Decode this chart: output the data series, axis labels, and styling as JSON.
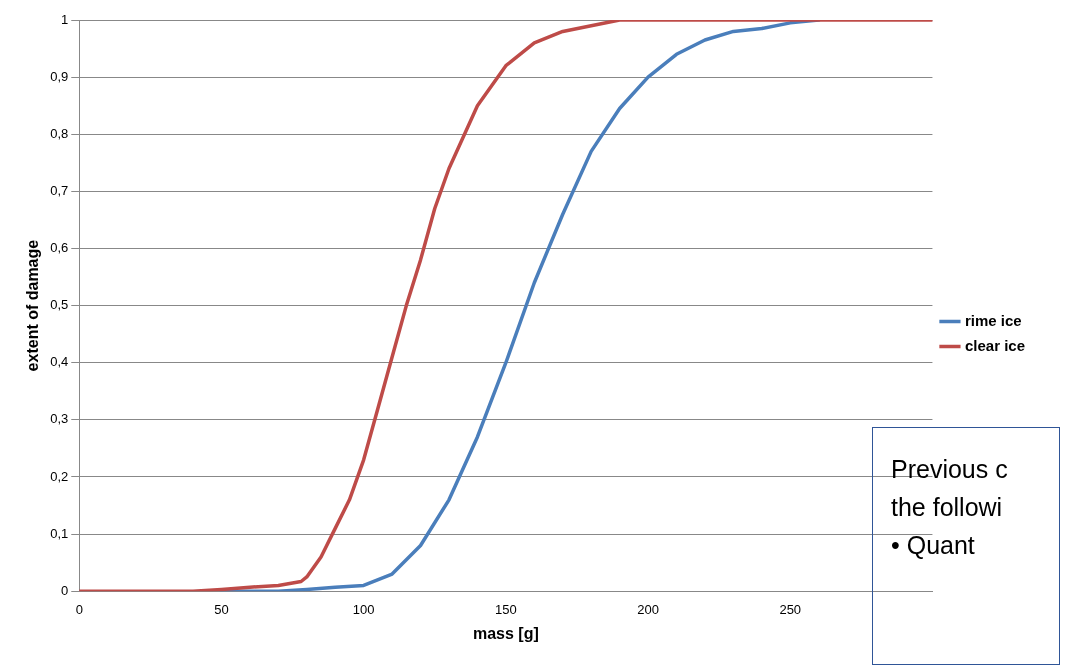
{
  "chart_data": {
    "type": "line",
    "xlabel": "mass [g]",
    "ylabel": "extent of damage",
    "xlim": [
      0,
      300
    ],
    "xticks": [
      0,
      50,
      100,
      150,
      200,
      250
    ],
    "ylim": [
      0,
      1
    ],
    "yticks": [
      {
        "value": 0,
        "label": "0"
      },
      {
        "value": 0.1,
        "label": "0,1"
      },
      {
        "value": 0.2,
        "label": "0,2"
      },
      {
        "value": 0.3,
        "label": "0,3"
      },
      {
        "value": 0.4,
        "label": "0,4"
      },
      {
        "value": 0.5,
        "label": "0,5"
      },
      {
        "value": 0.6,
        "label": "0,6"
      },
      {
        "value": 0.7,
        "label": "0,7"
      },
      {
        "value": 0.8,
        "label": "0,8"
      },
      {
        "value": 0.9,
        "label": "0,9"
      },
      {
        "value": 1,
        "label": "1"
      }
    ],
    "grid": "y",
    "legend": "right",
    "marker": "none",
    "line_style": "solid",
    "series": [
      {
        "name": "rime ice",
        "color": "#4a7ebb",
        "x": [
          50,
          60,
          70,
          80,
          90,
          100,
          110,
          120,
          130,
          140,
          150,
          160,
          170,
          180,
          190,
          200,
          210,
          220,
          230,
          240,
          250,
          260
        ],
        "values": [
          0,
          0,
          0,
          0.003,
          0.007,
          0.01,
          0.03,
          0.08,
          0.16,
          0.27,
          0.4,
          0.54,
          0.66,
          0.77,
          0.845,
          0.9,
          0.94,
          0.965,
          0.98,
          0.985,
          0.995,
          1
        ]
      },
      {
        "name": "clear ice",
        "color": "#be4b48",
        "x": [
          0,
          10,
          20,
          30,
          40,
          50,
          60,
          70,
          78,
          80,
          85,
          90,
          95,
          100,
          105,
          110,
          115,
          120,
          125,
          130,
          140,
          150,
          160,
          170,
          180,
          190,
          200,
          250,
          300
        ],
        "values": [
          0,
          0,
          0,
          0,
          0,
          0.003,
          0.007,
          0.01,
          0.017,
          0.025,
          0.06,
          0.11,
          0.16,
          0.23,
          0.32,
          0.41,
          0.5,
          0.58,
          0.67,
          0.74,
          0.85,
          0.92,
          0.96,
          0.98,
          0.99,
          1,
          1,
          1,
          1
        ]
      }
    ],
    "annotations": [
      "Previous c",
      "the followi",
      "• Quant"
    ]
  }
}
